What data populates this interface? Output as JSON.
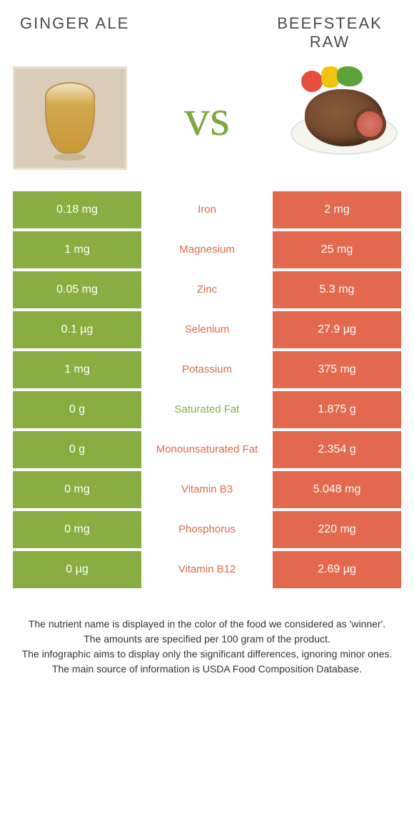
{
  "colors": {
    "left": "#8aad42",
    "right": "#e2694d",
    "mid_left": "#8aad42",
    "mid_right": "#e2694d"
  },
  "header": {
    "left_title": "GINGER ALE",
    "right_title_line1": "BEEFSTEAK",
    "right_title_line2": "RAW",
    "vs": "vs"
  },
  "rows": [
    {
      "left": "0.18 mg",
      "label": "Iron",
      "right": "2 mg",
      "winner": "right"
    },
    {
      "left": "1 mg",
      "label": "Magnesium",
      "right": "25 mg",
      "winner": "right"
    },
    {
      "left": "0.05 mg",
      "label": "Zinc",
      "right": "5.3 mg",
      "winner": "right"
    },
    {
      "left": "0.1 µg",
      "label": "Selenium",
      "right": "27.9 µg",
      "winner": "right"
    },
    {
      "left": "1 mg",
      "label": "Potassium",
      "right": "375 mg",
      "winner": "right"
    },
    {
      "left": "0 g",
      "label": "Saturated Fat",
      "right": "1.875 g",
      "winner": "left"
    },
    {
      "left": "0 g",
      "label": "Monounsaturated Fat",
      "right": "2.354 g",
      "winner": "right"
    },
    {
      "left": "0 mg",
      "label": "Vitamin B3",
      "right": "5.048 mg",
      "winner": "right"
    },
    {
      "left": "0 mg",
      "label": "Phosphorus",
      "right": "220 mg",
      "winner": "right"
    },
    {
      "left": "0 µg",
      "label": "Vitamin B12",
      "right": "2.69 µg",
      "winner": "right"
    }
  ],
  "footer": {
    "line1": "The nutrient name is displayed in the color of the food we considered as 'winner'.",
    "line2": "The amounts are specified per 100 gram of the product.",
    "line3": "The infographic aims to display only the significant differences, ignoring minor ones.",
    "line4": "The main source of information is USDA Food Composition Database."
  }
}
